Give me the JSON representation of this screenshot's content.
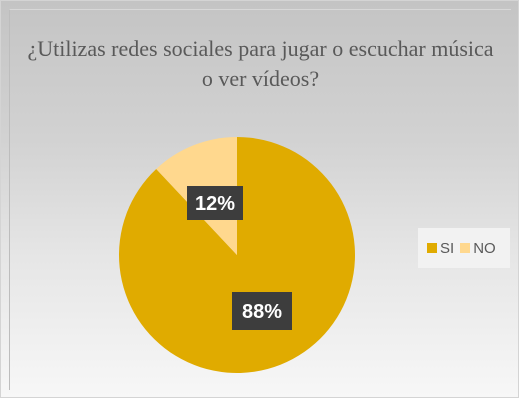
{
  "chart_data": {
    "type": "pie",
    "title": "¿Utilizas redes sociales para jugar o escuchar música o ver vídeos?",
    "categories": [
      "SI",
      "NO"
    ],
    "values": [
      88,
      12
    ],
    "data_labels": [
      "88%",
      "12%"
    ],
    "colors": [
      "#e0ab00",
      "#ffd88e"
    ],
    "legend_position": "right",
    "grid": false
  }
}
